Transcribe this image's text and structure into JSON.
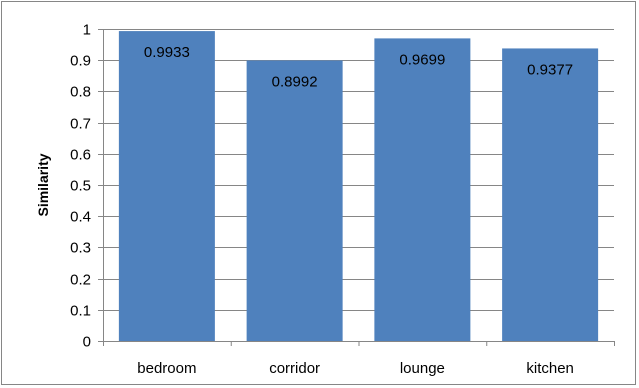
{
  "chart_data": {
    "type": "bar",
    "title": "",
    "xlabel": "",
    "ylabel": "Similarity",
    "categories": [
      "bedroom",
      "corridor",
      "lounge",
      "kitchen"
    ],
    "values": [
      0.9933,
      0.8992,
      0.9699,
      0.9377
    ],
    "data_labels": [
      "0.9933",
      "0.8992",
      "0.9699",
      "0.9377"
    ],
    "ylim": [
      0,
      1
    ],
    "yticks": [
      "0",
      "0.1",
      "0.2",
      "0.3",
      "0.4",
      "0.5",
      "0.6",
      "0.7",
      "0.8",
      "0.9",
      "1"
    ],
    "grid": true,
    "legend": "none",
    "bar_color": "#4f81bd"
  }
}
